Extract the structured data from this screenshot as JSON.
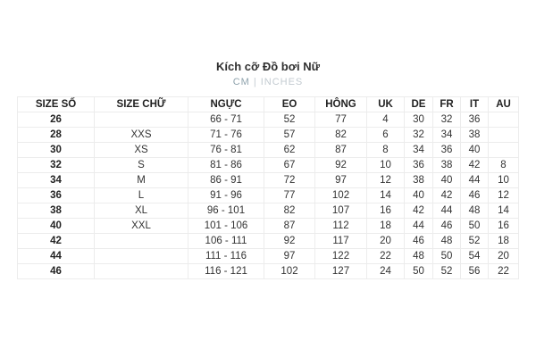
{
  "page": {
    "title": "Kích cỡ Đồ bơi Nữ"
  },
  "unit_toggle": {
    "cm_label": "CM",
    "separator": "|",
    "inches_label": "INCHES",
    "active_unit": "CM"
  },
  "table": {
    "headers": [
      "SIZE SỐ",
      "SIZE CHỮ",
      "NGỰC",
      "EO",
      "HÔNG",
      "UK",
      "DE",
      "FR",
      "IT",
      "AU"
    ],
    "rows": [
      [
        "26",
        "",
        "66 - 71",
        "52",
        "77",
        "4",
        "30",
        "32",
        "36",
        ""
      ],
      [
        "28",
        "XXS",
        "71 - 76",
        "57",
        "82",
        "6",
        "32",
        "34",
        "38",
        ""
      ],
      [
        "30",
        "XS",
        "76 - 81",
        "62",
        "87",
        "8",
        "34",
        "36",
        "40",
        ""
      ],
      [
        "32",
        "S",
        "81 - 86",
        "67",
        "92",
        "10",
        "36",
        "38",
        "42",
        "8"
      ],
      [
        "34",
        "M",
        "86 - 91",
        "72",
        "97",
        "12",
        "38",
        "40",
        "44",
        "10"
      ],
      [
        "36",
        "L",
        "91 - 96",
        "77",
        "102",
        "14",
        "40",
        "42",
        "46",
        "12"
      ],
      [
        "38",
        "XL",
        "96 - 101",
        "82",
        "107",
        "16",
        "42",
        "44",
        "48",
        "14"
      ],
      [
        "40",
        "XXL",
        "101 - 106",
        "87",
        "112",
        "18",
        "44",
        "46",
        "50",
        "16"
      ],
      [
        "42",
        "",
        "106 - 111",
        "92",
        "117",
        "20",
        "46",
        "48",
        "52",
        "18"
      ],
      [
        "44",
        "",
        "111 - 116",
        "97",
        "122",
        "22",
        "48",
        "50",
        "54",
        "20"
      ],
      [
        "46",
        "",
        "116 - 121",
        "102",
        "127",
        "24",
        "50",
        "52",
        "56",
        "22"
      ]
    ]
  },
  "colors": {
    "title_text": "#2f2f2f",
    "active_unit_text": "#8fa3ad",
    "inactive_unit_text": "#c3cbd1",
    "table_text": "#333333",
    "table_border": "#ececec",
    "background": "#ffffff"
  }
}
